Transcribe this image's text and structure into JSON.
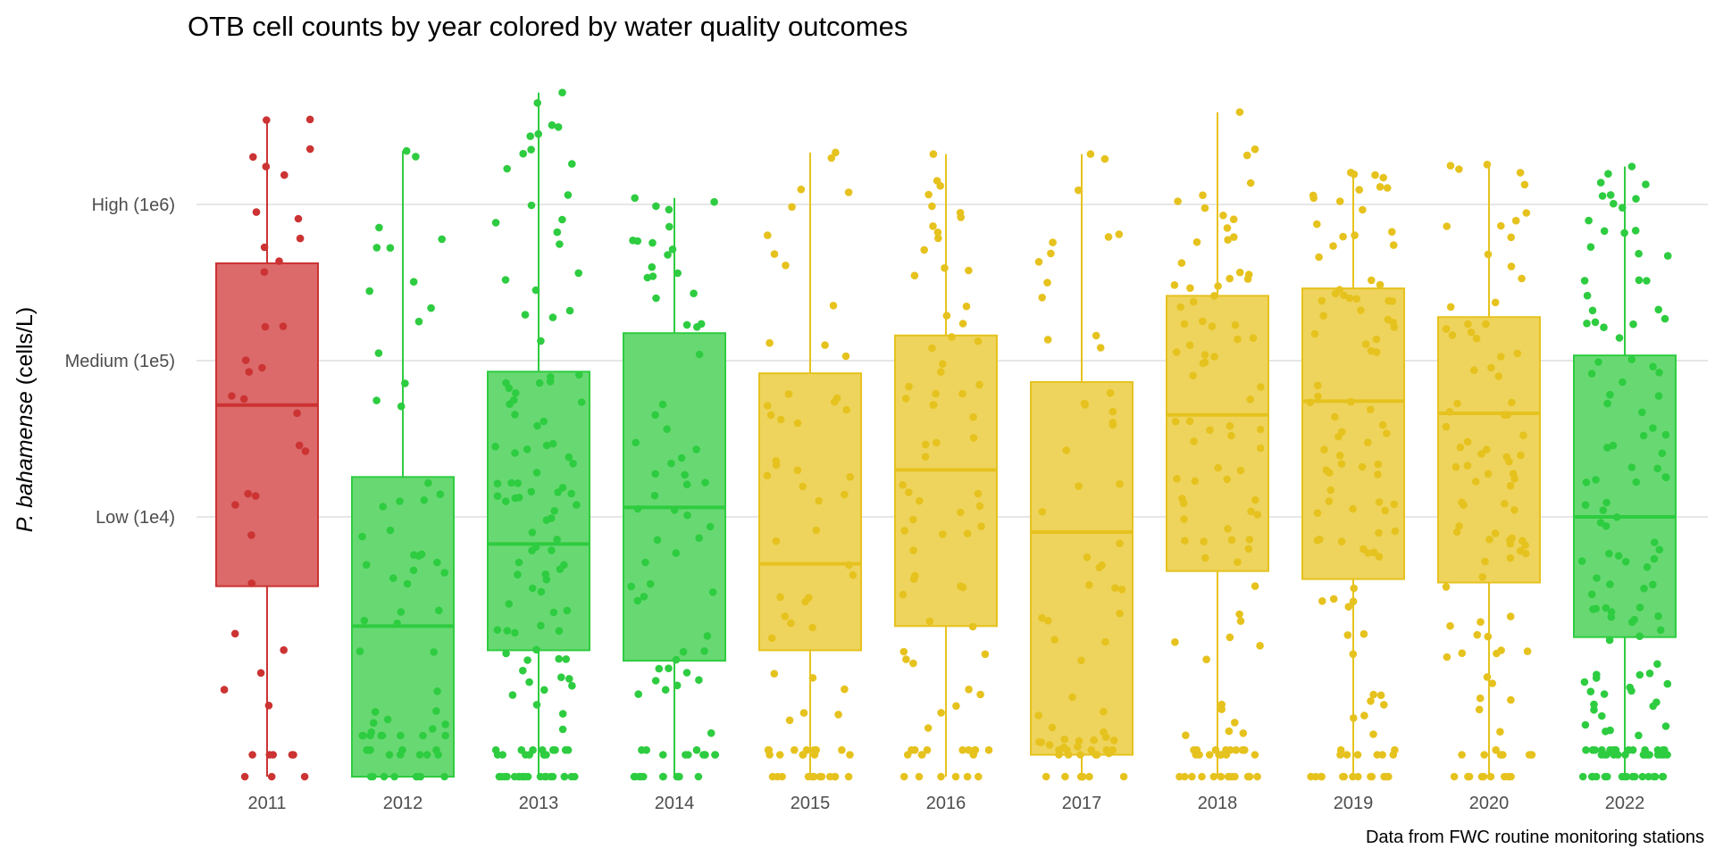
{
  "chart_data": {
    "type": "box",
    "title": "OTB cell counts by year colored by water quality outcomes",
    "ylabel_italic": "P. bahamense",
    "ylabel_rest": " (cells/L)",
    "caption": "Data from FWC routine monitoring stations",
    "y_scale": "log10",
    "yticks": [
      {
        "value": 1000000,
        "label": "High (1e6)"
      },
      {
        "value": 100000,
        "label": "Medium (1e5)"
      },
      {
        "value": 10000,
        "label": "Low (1e4)"
      }
    ],
    "ylim": [
      0,
      5000000
    ],
    "grid": true,
    "legend": "none",
    "colors": {
      "red": "#cc3333",
      "green": "#2ecc40",
      "yellow": "#e6c21e"
    },
    "categories": [
      "2011",
      "2012",
      "2013",
      "2014",
      "2015",
      "2016",
      "2017",
      "2018",
      "2019",
      "2020",
      "2022"
    ],
    "boxes": [
      {
        "year": "2011",
        "color": "red",
        "min": 0,
        "q1": 3600,
        "median": 52000,
        "q3": 420000,
        "max": 3500000,
        "n": 40
      },
      {
        "year": "2012",
        "color": "green",
        "min": 0,
        "q1": 0,
        "median": 2000,
        "q3": 18000,
        "max": 2200000,
        "n": 70
      },
      {
        "year": "2013",
        "color": "green",
        "min": 0,
        "q1": 1400,
        "median": 6700,
        "q3": 85000,
        "max": 5200000,
        "n": 130
      },
      {
        "year": "2014",
        "color": "green",
        "min": 0,
        "q1": 1200,
        "median": 11500,
        "q3": 150000,
        "max": 1100000,
        "n": 80
      },
      {
        "year": "2015",
        "color": "yellow",
        "min": 0,
        "q1": 1400,
        "median": 5000,
        "q3": 83000,
        "max": 2150000,
        "n": 70
      },
      {
        "year": "2016",
        "color": "yellow",
        "min": 0,
        "q1": 2000,
        "median": 20000,
        "q3": 145000,
        "max": 2100000,
        "n": 80
      },
      {
        "year": "2017",
        "color": "yellow",
        "min": 0,
        "q1": 300,
        "median": 8000,
        "q3": 73000,
        "max": 2100000,
        "n": 70
      },
      {
        "year": "2018",
        "color": "yellow",
        "min": 0,
        "q1": 4500,
        "median": 45000,
        "q3": 260000,
        "max": 3900000,
        "n": 110
      },
      {
        "year": "2019",
        "color": "yellow",
        "min": 0,
        "q1": 4000,
        "median": 55000,
        "q3": 290000,
        "max": 1600000,
        "n": 110
      },
      {
        "year": "2020",
        "color": "yellow",
        "min": 0,
        "q1": 3800,
        "median": 46000,
        "q3": 190000,
        "max": 1800000,
        "n": 100
      },
      {
        "year": "2022",
        "color": "green",
        "min": 0,
        "q1": 1700,
        "median": 10000,
        "q3": 108000,
        "max": 1750000,
        "n": 150
      }
    ]
  }
}
